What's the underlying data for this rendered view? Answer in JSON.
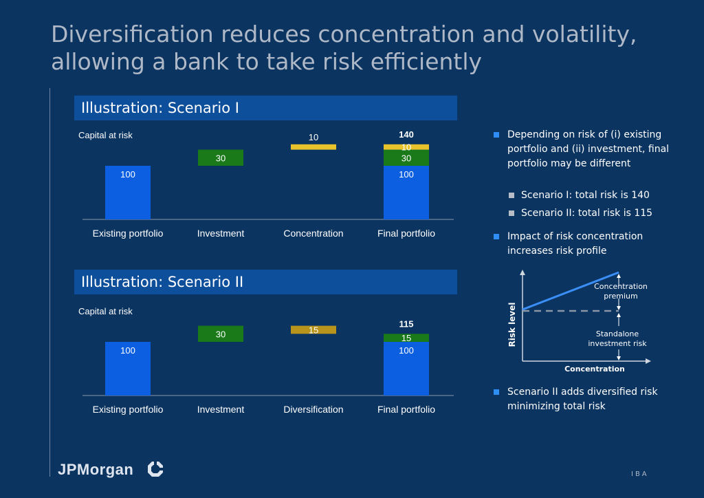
{
  "title": "Diversification reduces concentration and volatility, allowing a bank to take risk efficiently",
  "colors": {
    "background": "#0b3461",
    "header": "#0e4f9c",
    "blue_bar": "#0b5fe0",
    "green_bar": "#1a7a1a",
    "yellow_bar": "#e8c22a",
    "gold_bar": "#b8941c",
    "diagram_line": "#3a8ef5"
  },
  "scenario1": {
    "header": "Illustration: Scenario I"
  },
  "scenario2": {
    "header": "Illustration: Scenario II"
  },
  "chart_data": [
    {
      "type": "bar",
      "subtype": "waterfall",
      "ylabel": "Capital at risk",
      "categories": [
        "Existing portfolio",
        "Investment",
        "Concentration",
        "Final portfolio"
      ],
      "segments": [
        {
          "category": "Existing portfolio",
          "base": 0,
          "value": 100,
          "label": "100",
          "color": "blue"
        },
        {
          "category": "Investment",
          "base": 100,
          "value": 30,
          "label": "30",
          "color": "green"
        },
        {
          "category": "Concentration",
          "base": 130,
          "value": 10,
          "label": "10",
          "color": "yellow"
        },
        {
          "category": "Final portfolio",
          "base": 0,
          "value": 100,
          "label": "100",
          "color": "blue"
        },
        {
          "category": "Final portfolio",
          "base": 100,
          "value": 30,
          "label": "30",
          "color": "green"
        },
        {
          "category": "Final portfolio",
          "base": 130,
          "value": 10,
          "label": "10",
          "color": "yellow"
        }
      ],
      "total": {
        "category": "Final portfolio",
        "value": 140,
        "label": "140"
      },
      "ylim": [
        0,
        150
      ]
    },
    {
      "type": "bar",
      "subtype": "waterfall",
      "ylabel": "Capital at risk",
      "categories": [
        "Existing portfolio",
        "Investment",
        "Diversification",
        "Final portfolio"
      ],
      "segments": [
        {
          "category": "Existing portfolio",
          "base": 0,
          "value": 100,
          "label": "100",
          "color": "blue"
        },
        {
          "category": "Investment",
          "base": 100,
          "value": 30,
          "label": "30",
          "color": "green"
        },
        {
          "category": "Diversification",
          "base": 115,
          "value": 15,
          "label": "15",
          "color": "gold"
        },
        {
          "category": "Final portfolio",
          "base": 0,
          "value": 100,
          "label": "100",
          "color": "blue"
        },
        {
          "category": "Final portfolio",
          "base": 100,
          "value": 15,
          "label": "15",
          "color": "green"
        }
      ],
      "total": {
        "category": "Final portfolio",
        "value": 115,
        "label": "115"
      },
      "ylim": [
        0,
        150
      ]
    }
  ],
  "bullets": {
    "b1": "Depending on risk of (i) existing portfolio and (ii) investment, final portfolio may be different",
    "b1a": "Scenario I: total risk is 140",
    "b1b": "Scenario II: total risk is 115",
    "b2": "Impact of risk concentration increases risk profile",
    "b3": "Scenario II adds diversified risk minimizing total risk"
  },
  "diagram": {
    "ylabel": "Risk level",
    "xlabel": "Concentration",
    "premium_line1": "Concentration",
    "premium_line2": "premium",
    "standalone_line1": "Standalone",
    "standalone_line2": "investment risk"
  },
  "footer": {
    "logo": "JPMorgan",
    "code": "IBA"
  }
}
